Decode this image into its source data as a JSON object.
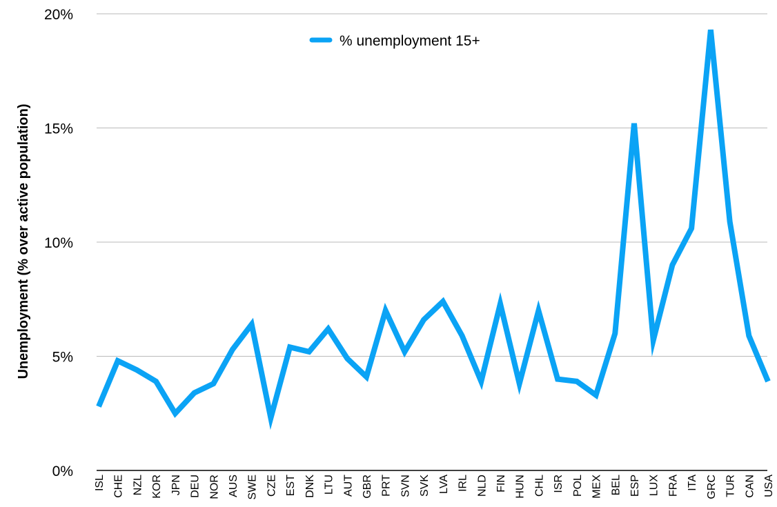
{
  "chart_data": {
    "type": "line",
    "title": "",
    "xlabel": "",
    "ylabel": "Unemployment (% over active population)",
    "ylim": [
      0,
      20
    ],
    "y_ticks": [
      "0%",
      "5%",
      "10%",
      "15%",
      "20%"
    ],
    "y_tick_values": [
      0,
      5,
      10,
      15,
      20
    ],
    "grid": "horizontal",
    "legend_position": "top-center",
    "categories": [
      "ISL",
      "CHE",
      "NZL",
      "KOR",
      "JPN",
      "DEU",
      "NOR",
      "AUS",
      "SWE",
      "CZE",
      "EST",
      "DNK",
      "LTU",
      "AUT",
      "GBR",
      "PRT",
      "SVN",
      "SVK",
      "LVA",
      "IRL",
      "NLD",
      "FIN",
      "HUN",
      "CHL",
      "ISR",
      "POL",
      "MEX",
      "BEL",
      "ESP",
      "LUX",
      "FRA",
      "ITA",
      "GRC",
      "TUR",
      "CAN",
      "USA"
    ],
    "series": [
      {
        "name": "% unemployment 15+",
        "color": "#0ba3f5",
        "values": [
          2.8,
          4.8,
          4.4,
          3.9,
          2.5,
          3.4,
          3.8,
          5.3,
          6.4,
          2.3,
          5.4,
          5.2,
          6.2,
          4.9,
          4.1,
          7.0,
          5.2,
          6.6,
          7.4,
          5.9,
          3.9,
          7.3,
          3.8,
          7.0,
          4.0,
          3.9,
          3.3,
          6.0,
          15.2,
          5.7,
          9.0,
          10.6,
          19.3,
          10.9,
          5.9,
          3.9
        ]
      }
    ]
  }
}
